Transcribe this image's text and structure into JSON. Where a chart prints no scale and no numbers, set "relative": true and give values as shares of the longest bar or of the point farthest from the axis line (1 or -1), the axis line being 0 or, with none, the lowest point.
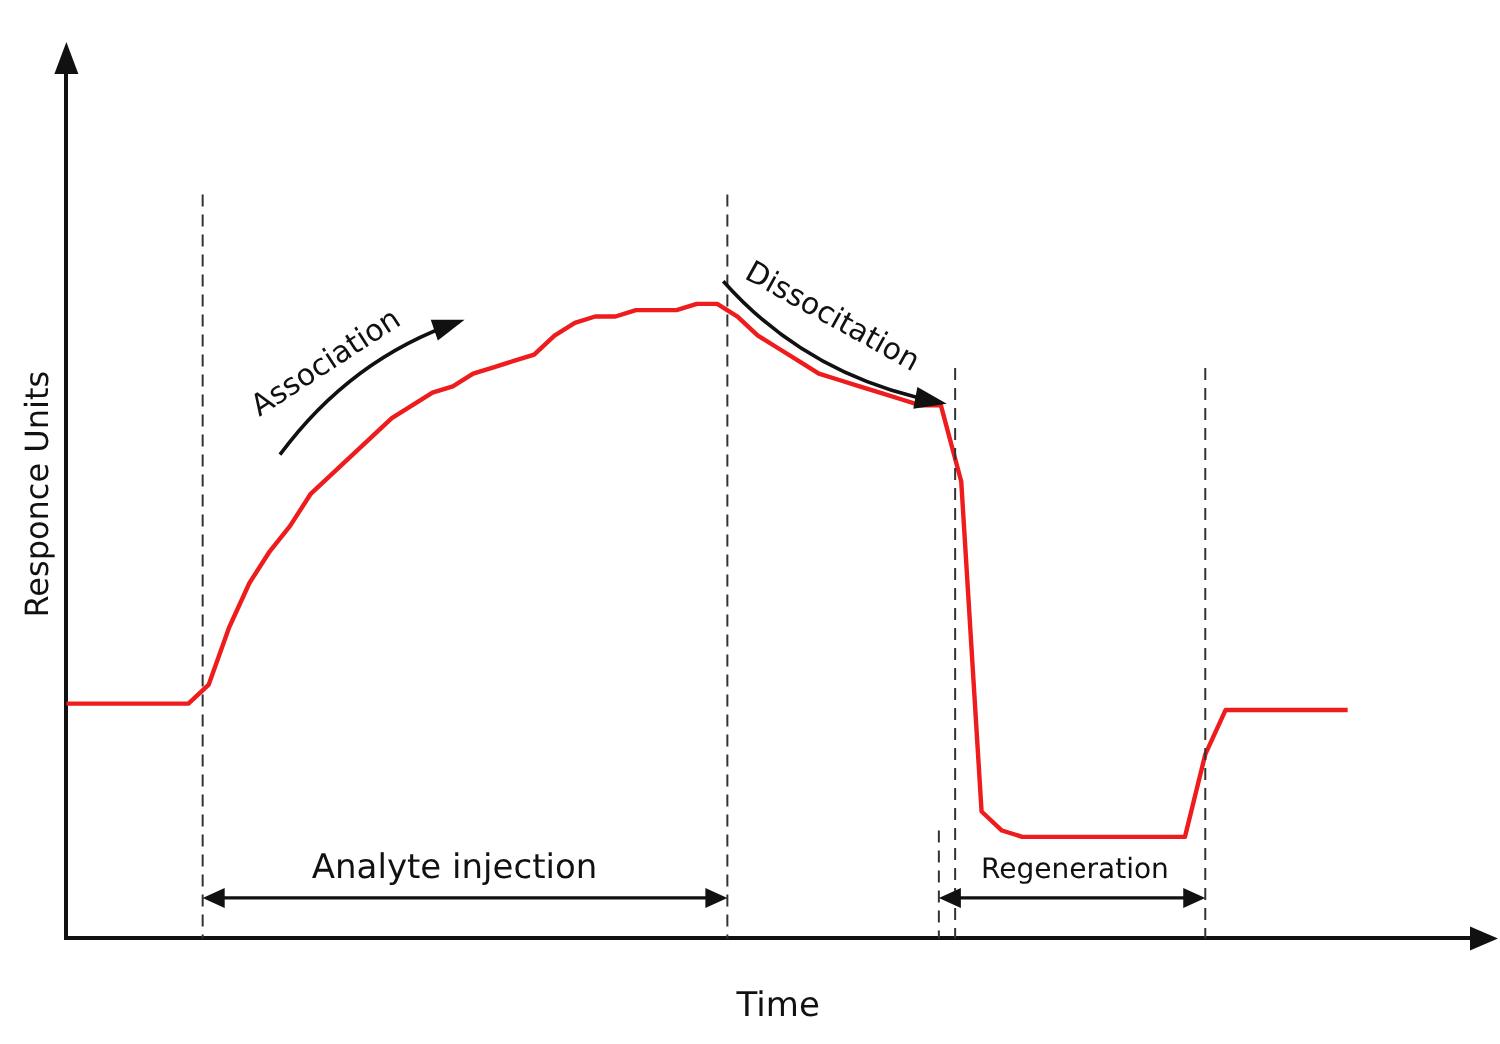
{
  "chart_data": {
    "type": "line",
    "relative": true,
    "xlabel": "Time",
    "ylabel": "Responce Units",
    "categories": [
      null,
      null,
      null,
      null,
      null,
      null,
      null,
      null,
      null,
      null,
      null,
      null,
      null,
      null,
      null,
      null,
      null,
      null,
      null,
      null,
      null,
      null,
      null,
      null,
      null,
      null,
      null,
      null,
      null,
      null,
      null,
      null,
      null,
      null,
      null,
      null,
      null,
      null,
      null,
      null,
      null,
      null,
      null,
      null,
      null,
      null,
      null,
      null,
      null,
      null,
      null,
      null,
      null,
      null,
      null,
      null,
      null,
      null,
      null,
      null,
      null,
      null,
      null,
      null,
      null,
      null,
      null,
      null,
      null,
      null,
      null
    ],
    "series": [
      {
        "color": "#ee1c1c",
        "values": [
          0.37,
          0.37,
          0.37,
          0.37,
          0.37,
          0.37,
          0.37,
          0.4,
          0.49,
          0.56,
          0.61,
          0.65,
          0.7,
          0.73,
          0.76,
          0.79,
          0.82,
          0.84,
          0.86,
          0.87,
          0.89,
          0.9,
          0.91,
          0.92,
          0.95,
          0.97,
          0.98,
          0.98,
          0.99,
          0.99,
          0.99,
          1.0,
          1.0,
          0.98,
          0.95,
          0.93,
          0.91,
          0.89,
          0.88,
          0.87,
          0.86,
          0.85,
          0.84,
          0.84,
          0.72,
          0.2,
          0.17,
          0.16,
          0.16,
          0.16,
          0.16,
          0.16,
          0.16,
          0.16,
          0.16,
          0.16,
          0.29,
          0.36,
          0.36,
          0.36,
          0.36,
          0.36,
          0.36,
          0.36,
          null,
          null,
          null,
          null,
          null,
          null,
          null
        ]
      }
    ],
    "annotations": [
      "Association",
      "Dissocitation",
      "Analyte injection",
      "Regeneration"
    ],
    "grid": false,
    "legend": false,
    "marker": "none",
    "line_style": "solid"
  }
}
